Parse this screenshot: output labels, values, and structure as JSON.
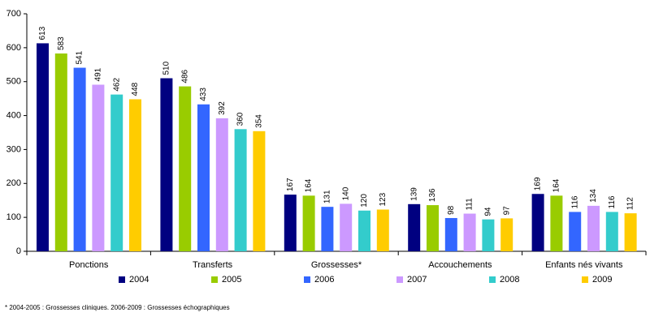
{
  "chart_data": {
    "type": "bar",
    "categories": [
      "Ponctions",
      "Transferts",
      "Grossesses*",
      "Accouchements",
      "Enfants nés vivants"
    ],
    "series": [
      {
        "name": "2004",
        "color": "#000080",
        "values": [
          613,
          510,
          167,
          139,
          169
        ]
      },
      {
        "name": "2005",
        "color": "#99cc00",
        "values": [
          583,
          486,
          164,
          136,
          164
        ]
      },
      {
        "name": "2006",
        "color": "#3366ff",
        "values": [
          541,
          433,
          131,
          98,
          116
        ]
      },
      {
        "name": "2007",
        "color": "#cc99ff",
        "values": [
          491,
          392,
          140,
          111,
          134
        ]
      },
      {
        "name": "2008",
        "color": "#33cccc",
        "values": [
          462,
          360,
          120,
          94,
          116
        ]
      },
      {
        "name": "2009",
        "color": "#ffcc00",
        "values": [
          448,
          354,
          123,
          97,
          112
        ]
      }
    ],
    "ylim": [
      0,
      700
    ],
    "yticks": [
      0,
      100,
      200,
      300,
      400,
      500,
      600,
      700
    ],
    "grid": false,
    "legend": "bottom",
    "footnote": "* 2004-2005 : Grossesses cliniques. 2006-2009 : Grossesses échographiques"
  }
}
